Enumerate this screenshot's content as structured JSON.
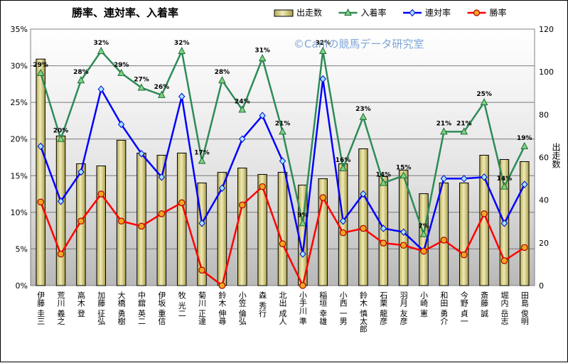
{
  "chart_data": {
    "type": "bar",
    "title": "勝率、連対率、入着率",
    "watermark": "©Caniの競馬データ研究室",
    "ylabel_right": "出走数",
    "legend_position": "top-right",
    "categories": [
      "伊藤 圭三",
      "荒川 義之",
      "高木 登",
      "加藤 征弘",
      "大橋 勇樹",
      "中舘 英二",
      "伊坂 重信",
      "牧 光二",
      "菊川 正達",
      "鈴木 伸尋",
      "小笠 倫弘",
      "森 秀行",
      "北出 成人",
      "小手川 準",
      "稲垣 幸雄",
      "小西 一男",
      "鈴木 慎太郎",
      "石栗 龍彦",
      "羽月 友彦",
      "小崎 憲",
      "和田 勇介",
      "今野 貞一",
      "斎藤 誠",
      "堀内 岳志",
      "田島 俊明"
    ],
    "y_left": {
      "min": 0,
      "max": 0.35,
      "ticks": [
        "0%",
        "5%",
        "10%",
        "15%",
        "20%",
        "25%",
        "30%",
        "35%"
      ]
    },
    "y_right": {
      "min": 0,
      "max": 120,
      "ticks": [
        "0",
        "20",
        "40",
        "60",
        "80",
        "100",
        "120"
      ]
    },
    "grid": true,
    "series": [
      {
        "name": "出走数",
        "kind": "bar",
        "axis": "right",
        "color": "#d8cf7e",
        "values": [
          106,
          70,
          57,
          56,
          68,
          62,
          61,
          62,
          48,
          53,
          55,
          52,
          53,
          47,
          50,
          57,
          64,
          51,
          54,
          43,
          48,
          48,
          61,
          59,
          58
        ]
      },
      {
        "name": "入着率",
        "kind": "line",
        "axis": "left",
        "color": "#2e8b57",
        "values": [
          0.29,
          0.2,
          0.28,
          0.32,
          0.29,
          0.27,
          0.26,
          0.32,
          0.17,
          0.28,
          0.24,
          0.31,
          0.21,
          0.085,
          0.32,
          0.16,
          0.23,
          0.14,
          0.15,
          0.07,
          0.21,
          0.21,
          0.25,
          0.135,
          0.19
        ],
        "labels": [
          "29%",
          "20%",
          "28%",
          "32%",
          "29%",
          "27%",
          "26%",
          "32%",
          "17%",
          "28%",
          "24%",
          "31%",
          "21%",
          "9%",
          "32%",
          "16%",
          "23%",
          "14%",
          "15%",
          "7%",
          "21%",
          "21%",
          "25%",
          "14%",
          "19%"
        ]
      },
      {
        "name": "連対率",
        "kind": "line",
        "axis": "left",
        "color": "#0000ff",
        "values": [
          0.19,
          0.115,
          0.155,
          0.268,
          0.22,
          0.18,
          0.148,
          0.258,
          0.085,
          0.133,
          0.2,
          0.232,
          0.17,
          0.043,
          0.282,
          0.088,
          0.125,
          0.078,
          0.073,
          0.047,
          0.146,
          0.146,
          0.148,
          0.085,
          0.138
        ]
      },
      {
        "name": "勝率",
        "kind": "line",
        "axis": "left",
        "color": "#ff0000",
        "values": [
          0.114,
          0.043,
          0.088,
          0.125,
          0.088,
          0.081,
          0.098,
          0.113,
          0.021,
          0.0,
          0.11,
          0.135,
          0.057,
          0.0,
          0.12,
          0.072,
          0.078,
          0.058,
          0.055,
          0.047,
          0.062,
          0.042,
          0.098,
          0.034,
          0.052
        ]
      }
    ]
  }
}
